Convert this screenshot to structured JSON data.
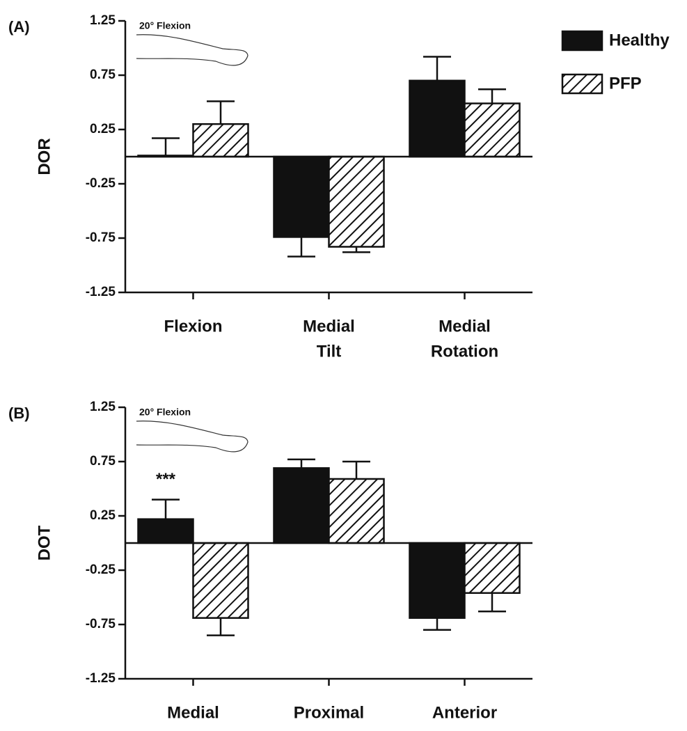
{
  "chart_data": [
    {
      "type": "bar",
      "panel_label": "(A)",
      "ylabel": "DOR",
      "annotation": "20° Flexion",
      "categories": [
        [
          "Flexion"
        ],
        [
          "Medial",
          "Tilt"
        ],
        [
          "Medial",
          "Rotation"
        ]
      ],
      "series": [
        {
          "name": "Healthy",
          "color": "#111111",
          "values": [
            0.01,
            -0.74,
            0.7
          ],
          "errors": [
            0.16,
            0.18,
            0.22
          ]
        },
        {
          "name": "PFP",
          "color": "#ffffff",
          "hatch": true,
          "values": [
            0.3,
            -0.83,
            0.49
          ],
          "errors": [
            0.21,
            0.05,
            0.13
          ]
        }
      ],
      "ylim": [
        -1.25,
        1.25
      ],
      "yticks": [
        -1.25,
        -0.75,
        -0.25,
        0.25,
        0.75,
        1.25
      ],
      "legend": "top-right"
    },
    {
      "type": "bar",
      "panel_label": "(B)",
      "ylabel": "DOT",
      "annotation": "20° Flexion",
      "marker_text": "***",
      "categories": [
        [
          "Medial"
        ],
        [
          "Proximal"
        ],
        [
          "Anterior"
        ]
      ],
      "series": [
        {
          "color": "#111111",
          "values": [
            0.22,
            0.69,
            -0.69
          ],
          "errors": [
            0.18,
            0.08,
            0.11
          ]
        },
        {
          "color": "#ffffff",
          "hatch": true,
          "values": [
            -0.69,
            0.59,
            -0.46
          ],
          "errors": [
            0.16,
            0.16,
            0.17
          ]
        }
      ],
      "ylim": [
        -1.25,
        1.25
      ],
      "yticks": [
        -1.25,
        -0.75,
        -0.25,
        0.25,
        0.75,
        1.25
      ]
    }
  ]
}
